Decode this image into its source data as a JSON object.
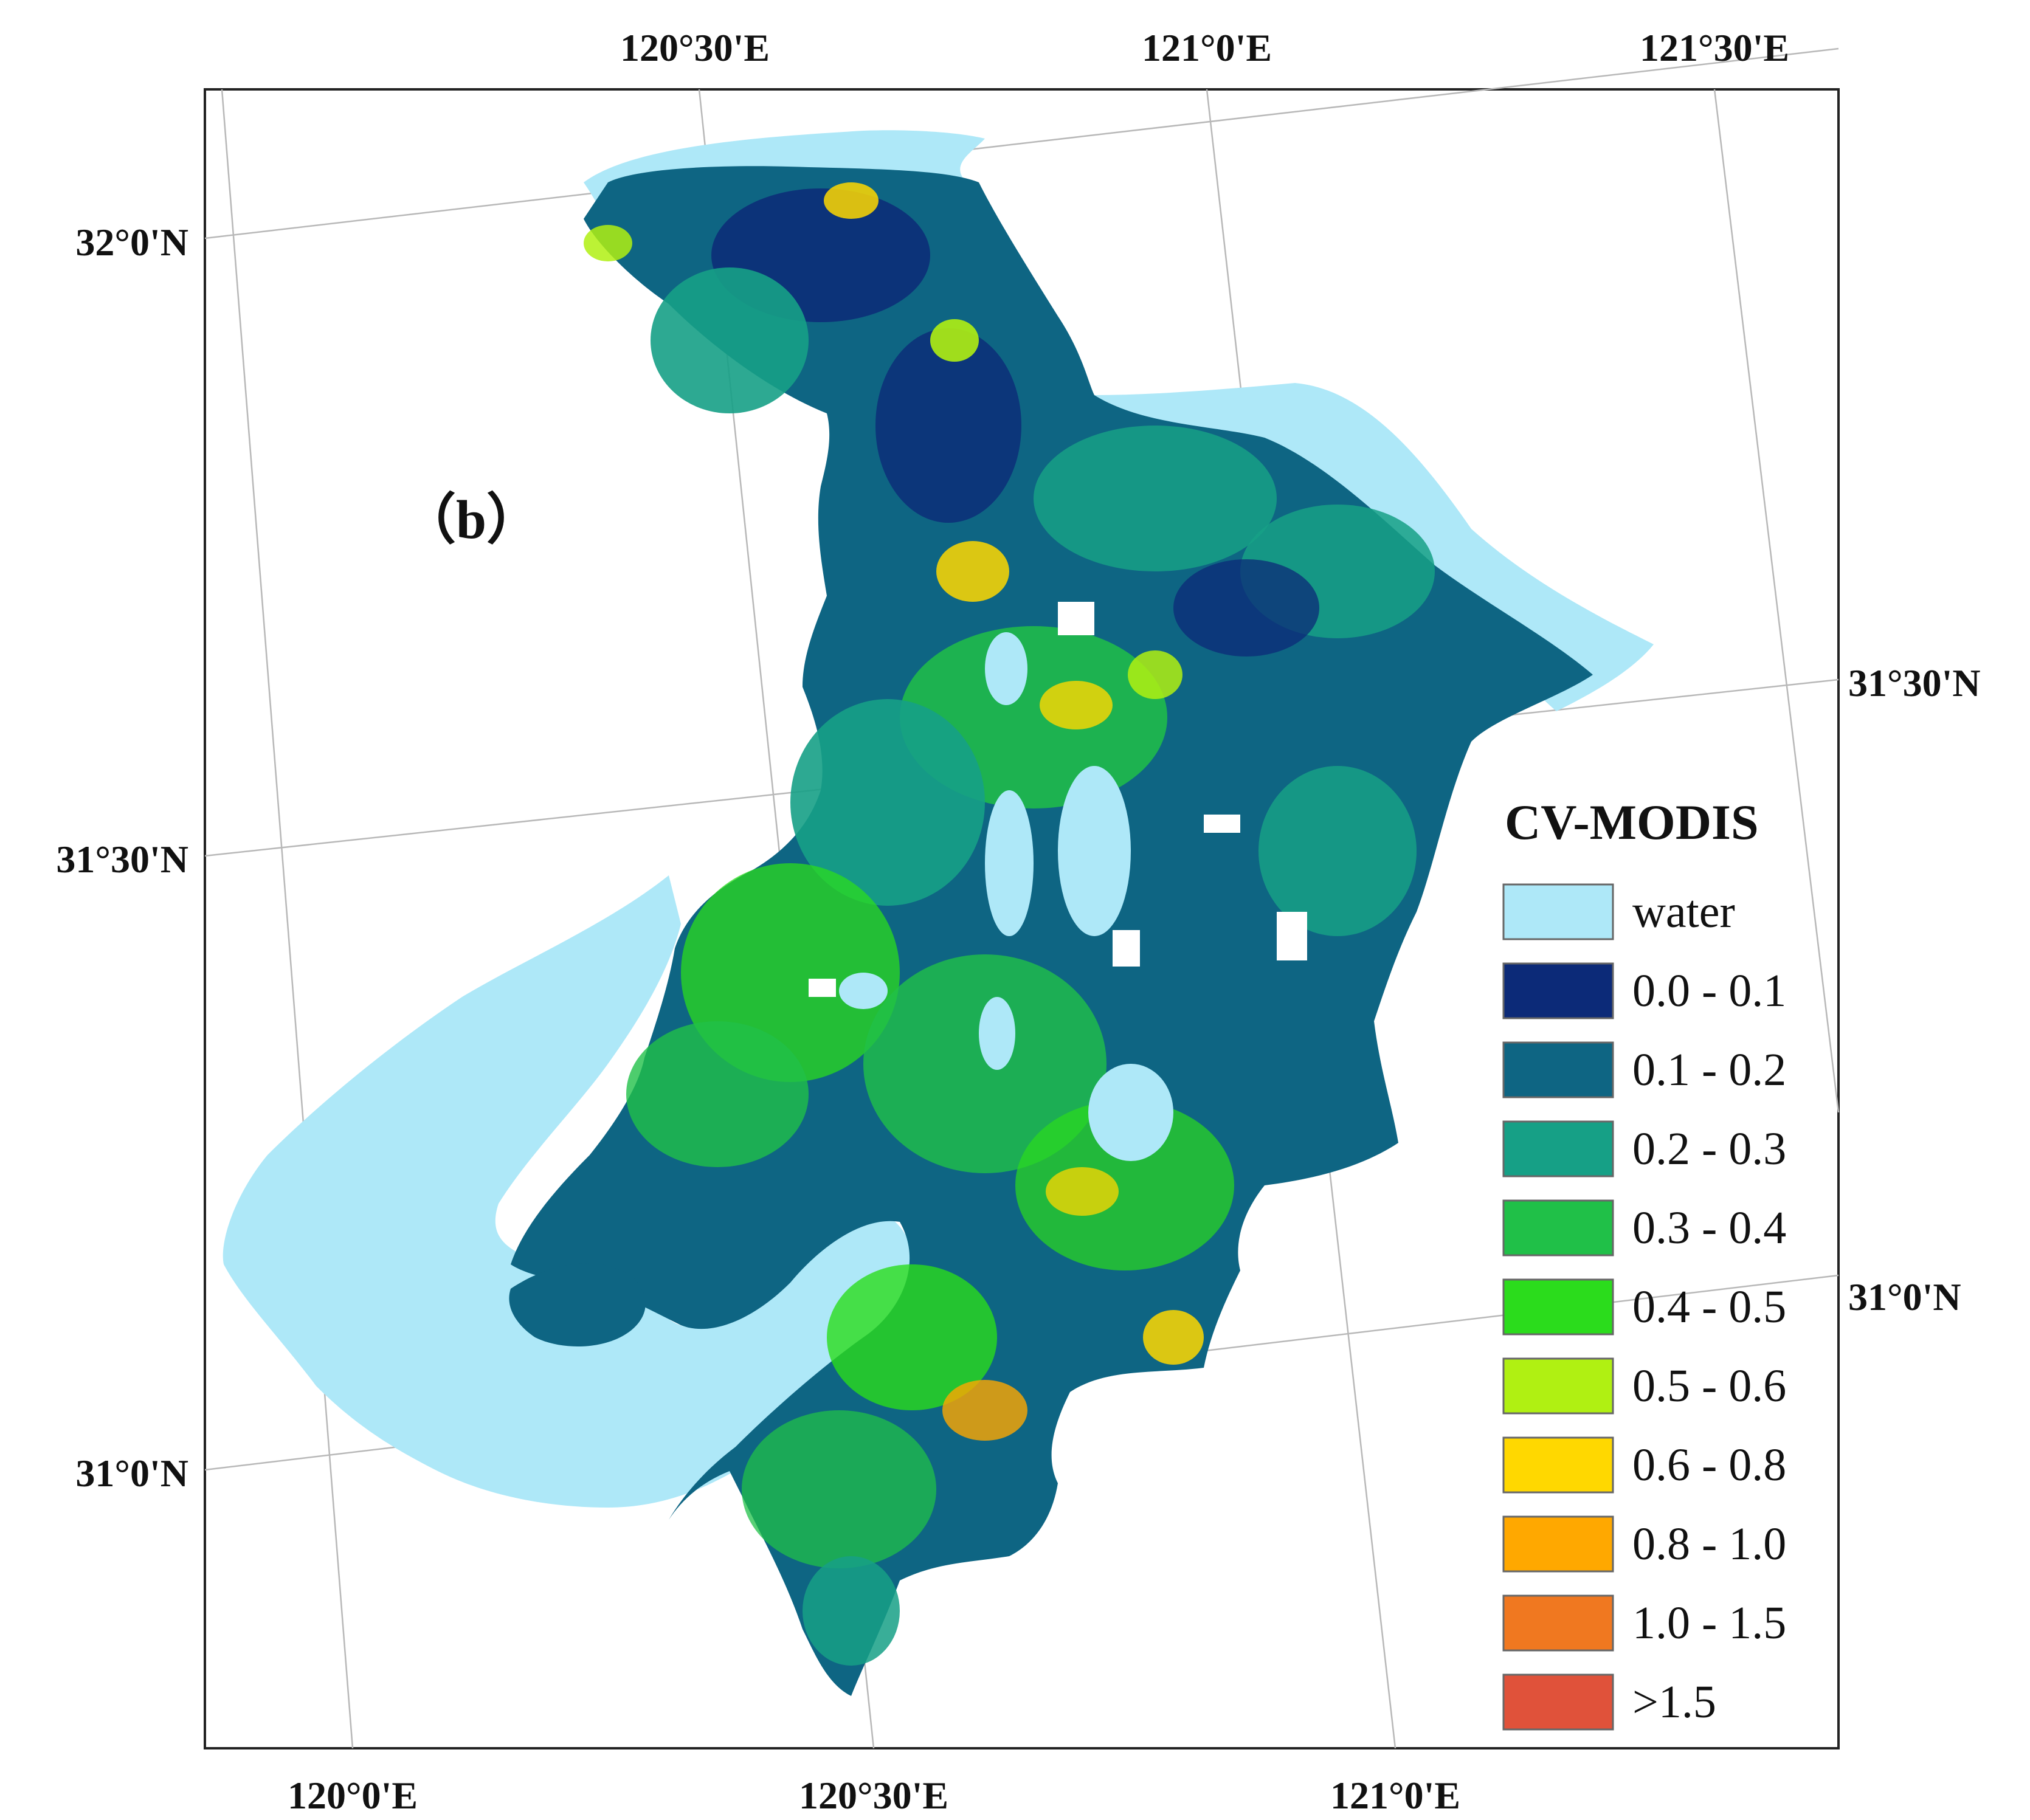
{
  "panel_label": "（b）",
  "graticule": {
    "top_labels": [
      "120°30'E",
      "121°0'E",
      "121°30'E"
    ],
    "bottom_labels": [
      "120°0'E",
      "120°30'E",
      "121°0'E"
    ],
    "left_labels": [
      "32°0'N",
      "31°30'N",
      "31°0'N"
    ],
    "right_labels": [
      "31°30'N",
      "31°0'N"
    ]
  },
  "legend": {
    "title": "CV-MODIS",
    "items": [
      {
        "label": "water",
        "color": "#aee8f8"
      },
      {
        "label": "0.0 - 0.1",
        "color": "#0c2a78"
      },
      {
        "label": "0.1 - 0.2",
        "color": "#0e6583"
      },
      {
        "label": "0.2 - 0.3",
        "color": "#16a086"
      },
      {
        "label": "0.3 - 0.4",
        "color": "#20c048"
      },
      {
        "label": "0.4 - 0.5",
        "color": "#2bdc1c"
      },
      {
        "label": "0.5 - 0.6",
        "color": "#b0f012"
      },
      {
        "label": "0.6 - 0.8",
        "color": "#ffd800"
      },
      {
        "label": "0.8 - 1.0",
        "color": "#ffa800"
      },
      {
        "label": "1.0 - 1.5",
        "color": "#f07820"
      },
      {
        "label": ">1.5",
        "color": "#e0523a"
      }
    ]
  }
}
